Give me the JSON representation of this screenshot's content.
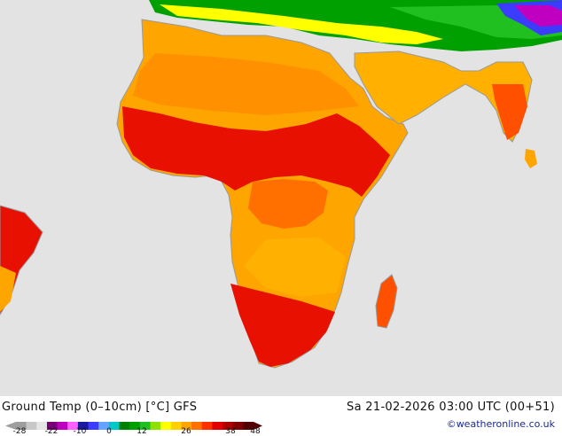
{
  "map": {
    "title": "Ground Temp (0–10cm) [°C] GFS",
    "valid_time": "Sa 21-02-2026 03:00 UTC (00+51)",
    "credit": "©weatheronline.co.uk",
    "region": "Africa",
    "colors": {
      "ocean": "#e3e3e3",
      "coast": "#999999",
      "warm": "#ffa500",
      "hot": "#e81000",
      "cool_green": "#00a000"
    }
  },
  "legend": {
    "ticks": [
      "-28",
      "-22",
      "-10",
      "0",
      "12",
      "26",
      "38",
      "48"
    ],
    "colors": [
      "#9e9e9e",
      "#c8c8c8",
      "#e6e6e6",
      "#7a007a",
      "#c000c0",
      "#ff60ff",
      "#1a1aa0",
      "#3c3cff",
      "#66a3ff",
      "#00c8c8",
      "#008000",
      "#00a000",
      "#20c020",
      "#90e000",
      "#ffff00",
      "#ffd000",
      "#ffa500",
      "#ff7000",
      "#ff3000",
      "#e00000",
      "#b00000",
      "#800000",
      "#500000"
    ]
  }
}
